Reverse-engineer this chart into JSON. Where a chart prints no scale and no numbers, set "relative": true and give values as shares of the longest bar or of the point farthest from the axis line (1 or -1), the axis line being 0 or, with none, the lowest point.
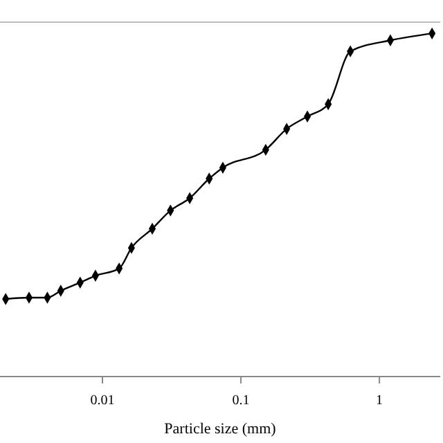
{
  "chart_data": {
    "type": "line",
    "relative": true,
    "xlabel": "Particle size (mm)",
    "log": "x",
    "xlim": [
      0.00182,
      2.75
    ],
    "xticks": [
      0.01,
      0.1,
      1
    ],
    "marker": "diamond",
    "line_style": "solid",
    "x": [
      0.002,
      0.00295,
      0.004,
      0.005,
      0.0069,
      0.0089,
      0.0132,
      0.0162,
      0.0229,
      0.031,
      0.0427,
      0.059,
      0.074,
      0.151,
      0.214,
      0.302,
      0.427,
      0.617,
      1.2,
      2.4
    ],
    "series": [
      {
        "color": "#000000",
        "values": [
          0.226,
          0.23,
          0.23,
          0.25,
          0.274,
          0.294,
          0.315,
          0.375,
          0.431,
          0.484,
          0.52,
          0.577,
          0.609,
          0.661,
          0.722,
          0.758,
          0.794,
          0.948,
          0.98,
          1
        ]
      }
    ]
  }
}
